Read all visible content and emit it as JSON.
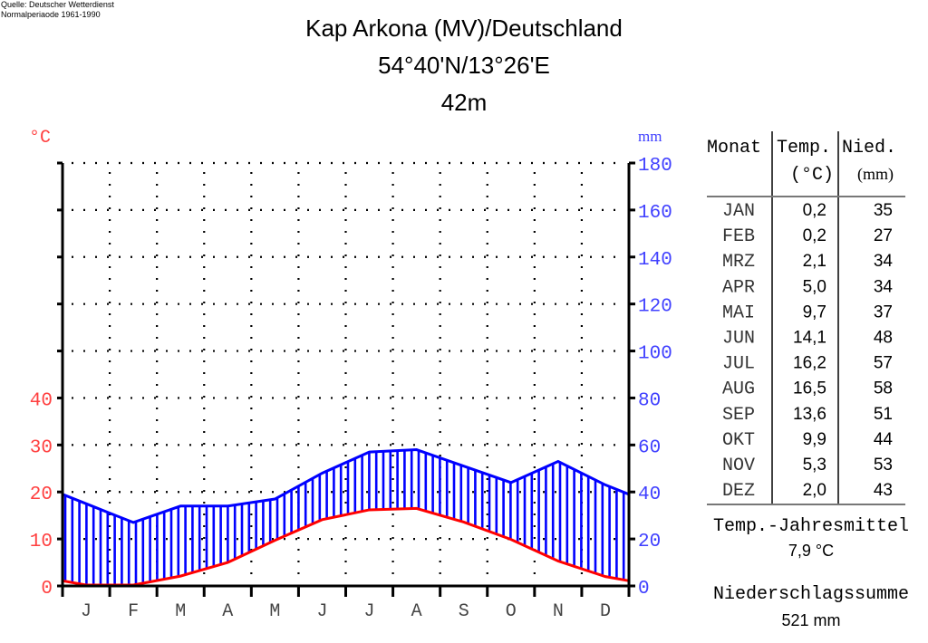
{
  "source": {
    "line1": "Quelle: Deutscher Wetterdienst",
    "line2": "Normalperiaode 1961-1990"
  },
  "header": {
    "station": "Kap Arkona (MV)/Deutschland",
    "coordinates": "54°40'N/13°26'E",
    "elevation": "42m"
  },
  "table": {
    "headers": {
      "month": "Monat",
      "temp": "Temp.",
      "temp_unit": "(°C)",
      "precip": "Nied.",
      "precip_unit": "(mm)"
    },
    "rows": [
      {
        "month": "JAN",
        "temp": "0,2",
        "precip": "35"
      },
      {
        "month": "FEB",
        "temp": "0,2",
        "precip": "27"
      },
      {
        "month": "MRZ",
        "temp": "2,1",
        "precip": "34"
      },
      {
        "month": "APR",
        "temp": "5,0",
        "precip": "34"
      },
      {
        "month": "MAI",
        "temp": "9,7",
        "precip": "37"
      },
      {
        "month": "JUN",
        "temp": "14,1",
        "precip": "48"
      },
      {
        "month": "JUL",
        "temp": "16,2",
        "precip": "57"
      },
      {
        "month": "AUG",
        "temp": "16,5",
        "precip": "58"
      },
      {
        "month": "SEP",
        "temp": "13,6",
        "precip": "51"
      },
      {
        "month": "OKT",
        "temp": "9,9",
        "precip": "44"
      },
      {
        "month": "NOV",
        "temp": "5,3",
        "precip": "53"
      },
      {
        "month": "DEZ",
        "temp": "2,0",
        "precip": "43"
      }
    ]
  },
  "summary": {
    "temp_label": "Temp.-Jahresmittel",
    "temp_value": "7,9 °C",
    "precip_label": "Niederschlagssumme",
    "precip_value": "521 mm"
  },
  "chart_data": {
    "type": "line",
    "title": "Kap Arkona (MV)/Deutschland",
    "categories": [
      "J",
      "F",
      "M",
      "A",
      "M",
      "J",
      "J",
      "A",
      "S",
      "O",
      "N",
      "D"
    ],
    "series": [
      {
        "name": "Temperatur",
        "unit": "°C",
        "axis": "left",
        "color": "#ff0000",
        "values": [
          0.2,
          0.2,
          2.1,
          5.0,
          9.7,
          14.1,
          16.2,
          16.5,
          13.6,
          9.9,
          5.3,
          2.0
        ]
      },
      {
        "name": "Niederschlag",
        "unit": "mm",
        "axis": "right",
        "color": "#0000ff",
        "values": [
          35,
          27,
          34,
          34,
          37,
          48,
          57,
          58,
          51,
          44,
          53,
          43
        ]
      }
    ],
    "left_axis": {
      "label": "°C",
      "ticks": [
        0,
        10,
        20,
        30,
        40
      ],
      "range": [
        0,
        90
      ],
      "color": "#ff4040"
    },
    "right_axis": {
      "label": "mm",
      "ticks": [
        0,
        20,
        40,
        60,
        80,
        100,
        120,
        140,
        160,
        180
      ],
      "range": [
        0,
        180
      ],
      "color": "#4040ff"
    },
    "grid": true,
    "fill": "humid (vertical hatching between precipitation and temperature)"
  }
}
